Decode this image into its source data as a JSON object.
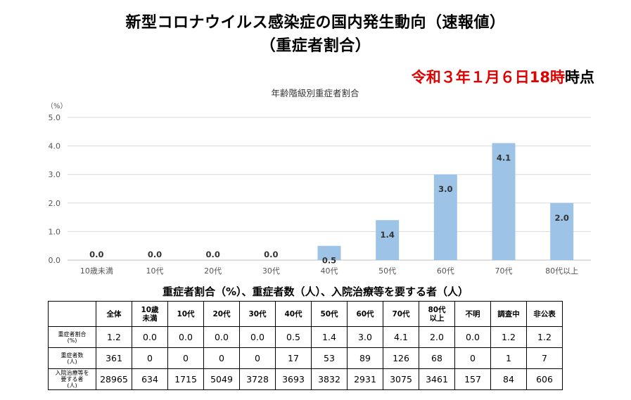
{
  "header": {
    "title_line1": "新型コロナウイルス感染症の国内発生動向（速報値）",
    "title_line2": "（重症者割合）",
    "asof_red": "令和３年１月６日18時",
    "asof_black": "時点"
  },
  "chart_data": {
    "type": "bar",
    "title": "年齢階級別重症者割合",
    "ylabel": "（%）",
    "categories": [
      "10歳未満",
      "10代",
      "20代",
      "30代",
      "40代",
      "50代",
      "60代",
      "70代",
      "80代以上"
    ],
    "values": [
      0.0,
      0.0,
      0.0,
      0.0,
      0.5,
      1.4,
      3.0,
      4.1,
      2.0
    ],
    "value_labels": [
      "0.0",
      "0.0",
      "0.0",
      "0.0",
      "0.5",
      "1.4",
      "3.0",
      "4.1",
      "2.0"
    ],
    "ylim": [
      0,
      5
    ],
    "yticks": [
      0,
      1,
      2,
      3,
      4,
      5
    ],
    "ytick_labels": [
      "0.0",
      "1.0",
      "2.0",
      "3.0",
      "4.0",
      "5.0"
    ],
    "grid": true,
    "bar_color": "#9dc3e6"
  },
  "table": {
    "title": "重症者割合（%）、重症者数（人）、入院治療等を要する者（人）",
    "corner": "",
    "columns": [
      "全体",
      "10歳\n未満",
      "10代",
      "20代",
      "30代",
      "40代",
      "50代",
      "60代",
      "70代",
      "80代\n以上",
      "不明",
      "調査中",
      "非公表"
    ],
    "rows": [
      {
        "label": "重症者割合\n(%)",
        "values": [
          "1.2",
          "0.0",
          "0.0",
          "0.0",
          "0.0",
          "0.5",
          "1.4",
          "3.0",
          "4.1",
          "2.0",
          "0.0",
          "1.2",
          "1.2"
        ]
      },
      {
        "label": "重症者数\n(人)",
        "values": [
          "361",
          "0",
          "0",
          "0",
          "0",
          "17",
          "53",
          "89",
          "126",
          "68",
          "0",
          "1",
          "7"
        ]
      },
      {
        "label": "入院治療等を\n要する者\n(人)",
        "values": [
          "28965",
          "634",
          "1715",
          "5049",
          "3728",
          "3693",
          "3832",
          "2931",
          "3075",
          "3461",
          "157",
          "84",
          "606"
        ]
      }
    ]
  }
}
